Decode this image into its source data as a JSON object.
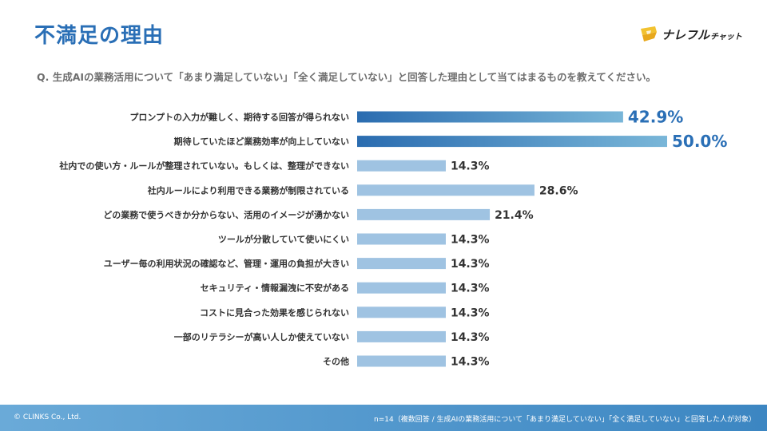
{
  "header": {
    "title": "不満足の理由",
    "question": "Q. 生成AIの業務活用について「あまり満足していない」「全く満足していない」と回答した理由として当てはまるものを教えてください。"
  },
  "logo": {
    "text_main": "ナレフル",
    "text_sub": "チャット",
    "icon": "pencil-logo-icon"
  },
  "colors": {
    "title": "#2a6fb6",
    "bar_top_start": "#2a6cb0",
    "bar_top_end": "#79b6d8",
    "bar_other": "#9fc3e2",
    "value_top": "#2a6fb6",
    "value_other": "#333333",
    "footer": "#4b92c9"
  },
  "footer": {
    "copyright": "© CLINKS Co., Ltd.",
    "note": "n=14（複数回答 / 生成AIの業務活用について「あまり満足していない」「全く満足していない」と回答した人が対象）"
  },
  "chart_data": {
    "type": "bar",
    "orientation": "horizontal",
    "unit": "%",
    "xlim": [
      0,
      50
    ],
    "grid": false,
    "categories": [
      "プロンプトの入力が難しく、期待する回答が得られない",
      "期待していたほど業務効率が向上していない",
      "社内での使い方・ルールが整理されていない。もしくは、整理ができない",
      "社内ルールにより利用できる業務が制限されている",
      "どの業務で使うべきか分からない、活用のイメージが湧かない",
      "ツールが分散していて使いにくい",
      "ユーザー毎の利用状況の確認など、管理・運用の負担が大きい",
      "セキュリティ・情報漏洩に不安がある",
      "コストに見合った効果を感じられない",
      "一部のリテラシーが高い人しか使えていない",
      "その他"
    ],
    "values": [
      42.9,
      50.0,
      14.3,
      28.6,
      21.4,
      14.3,
      14.3,
      14.3,
      14.3,
      14.3,
      14.3
    ],
    "value_labels": [
      "42.9%",
      "50.0%",
      "14.3%",
      "28.6%",
      "21.4%",
      "14.3%",
      "14.3%",
      "14.3%",
      "14.3%",
      "14.3%",
      "14.3%"
    ],
    "highlight": [
      true,
      true,
      false,
      false,
      false,
      false,
      false,
      false,
      false,
      false,
      false
    ]
  }
}
